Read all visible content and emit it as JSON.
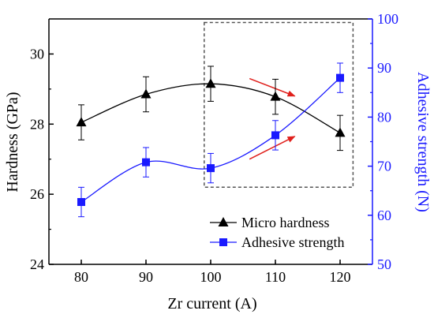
{
  "chart_data": {
    "type": "line",
    "xlabel": "Zr current (A)",
    "ylabel_left": "Hardness (GPa)",
    "ylabel_right": "Adhesive strength (N)",
    "x": [
      80,
      90,
      100,
      110,
      120
    ],
    "x_ticks": [
      "80",
      "90",
      "100",
      "110",
      "120"
    ],
    "xlim": [
      75,
      125
    ],
    "ylim_left": [
      24,
      31
    ],
    "ylim_right": [
      50,
      100
    ],
    "y_ticks_left": [
      "24",
      "26",
      "28",
      "30"
    ],
    "y_ticks_right": [
      "50",
      "60",
      "70",
      "80",
      "90",
      "100"
    ],
    "series": [
      {
        "name": "Micro hardness",
        "axis": "left",
        "marker": "triangle",
        "color": "#000000",
        "values": [
          28.05,
          28.85,
          29.15,
          28.78,
          27.75
        ],
        "error": [
          0.5,
          0.5,
          0.5,
          0.5,
          0.5
        ]
      },
      {
        "name": "Adhesive strength",
        "axis": "right",
        "marker": "square",
        "color": "#1a1aff",
        "values": [
          62.7,
          70.8,
          69.6,
          76.3,
          88.0
        ],
        "error": [
          3.0,
          3.0,
          3.0,
          3.0,
          3.0
        ]
      }
    ],
    "legend_position": "bottom-right",
    "annotations": {
      "dashed_box": {
        "x_range": [
          99,
          122
        ],
        "y_range_left": [
          26.2,
          30.9
        ],
        "color": "#555555"
      },
      "arrows": [
        {
          "color": "#e0201c",
          "from": [
            106,
            29.3
          ],
          "to": [
            113,
            28.8
          ]
        },
        {
          "color": "#e0201c",
          "from": [
            106,
            27.0
          ],
          "to": [
            113,
            27.65
          ]
        }
      ]
    },
    "colors": {
      "left_axis": "#000000",
      "right_axis": "#1a1aff",
      "arrow": "#e0201c"
    }
  }
}
